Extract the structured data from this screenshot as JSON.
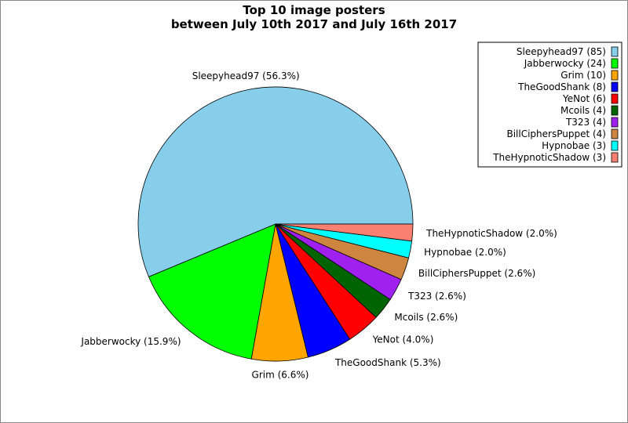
{
  "chart_data": {
    "type": "pie",
    "title": "Top 10 image posters\nbetween July 10th 2017 and July 16th 2017",
    "title_lines": [
      "Top 10 image posters",
      "between July 10th 2017 and July 16th 2017"
    ],
    "start_angle_deg": 0,
    "direction": "counterclockwise",
    "legend_position": "top-right",
    "slices": [
      {
        "name": "Sleepyhead97",
        "value": 85,
        "percent": 56.3,
        "color": "#87CEEB",
        "legend": "Sleepyhead97 (85)",
        "label": "Sleepyhead97 (56.3%)"
      },
      {
        "name": "Jabberwocky",
        "value": 24,
        "percent": 15.9,
        "color": "#00FF00",
        "legend": "Jabberwocky (24)",
        "label": "Jabberwocky (15.9%)"
      },
      {
        "name": "Grim",
        "value": 10,
        "percent": 6.6,
        "color": "#FFA500",
        "legend": "Grim (10)",
        "label": "Grim (6.6%)"
      },
      {
        "name": "TheGoodShank",
        "value": 8,
        "percent": 5.3,
        "color": "#0000FF",
        "legend": "TheGoodShank (8)",
        "label": "TheGoodShank (5.3%)"
      },
      {
        "name": "YeNot",
        "value": 6,
        "percent": 4.0,
        "color": "#FF0000",
        "legend": "YeNot (6)",
        "label": "YeNot (4.0%)"
      },
      {
        "name": "Mcoils",
        "value": 4,
        "percent": 2.6,
        "color": "#006400",
        "legend": "Mcoils (4)",
        "label": "Mcoils (2.6%)"
      },
      {
        "name": "T323",
        "value": 4,
        "percent": 2.6,
        "color": "#A020F0",
        "legend": "T323 (4)",
        "label": "T323 (2.6%)"
      },
      {
        "name": "BillCiphersPuppet",
        "value": 4,
        "percent": 2.6,
        "color": "#CD853F",
        "legend": "BillCiphersPuppet (4)",
        "label": "BillCiphersPuppet (2.6%)"
      },
      {
        "name": "Hypnobae",
        "value": 3,
        "percent": 2.0,
        "color": "#00FFFF",
        "legend": "Hypnobae (3)",
        "label": "Hypnobae (2.0%)"
      },
      {
        "name": "TheHypnoticShadow",
        "value": 3,
        "percent": 2.0,
        "color": "#FA8072",
        "legend": "TheHypnoticShadow (3)",
        "label": "TheHypnoticShadow (2.0%)"
      }
    ]
  }
}
